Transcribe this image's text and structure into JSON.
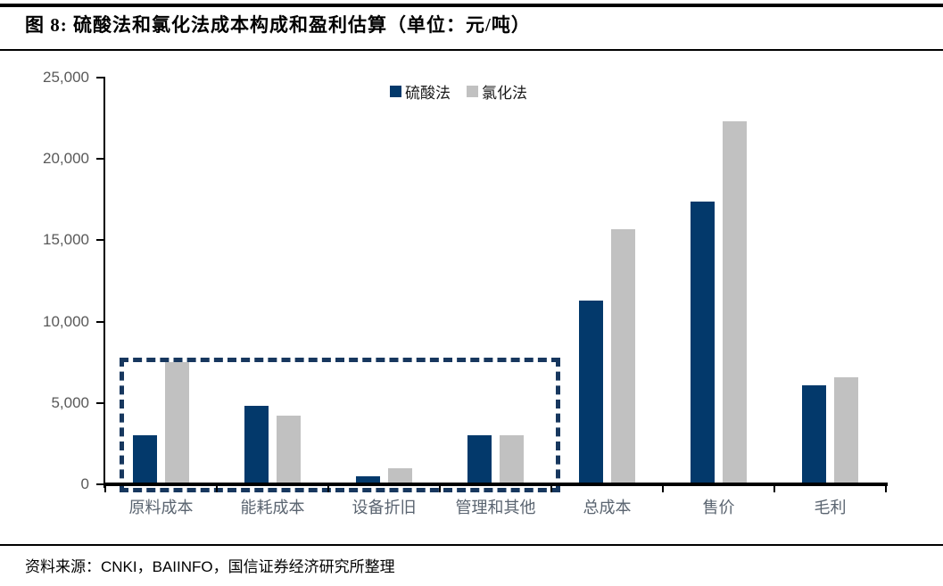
{
  "figure": {
    "title": "图 8:  硫酸法和氯化法成本构成和盈利估算（单位：元/吨）",
    "source": "资料来源：CNKI，BAIINFO，国信证券经济研究所整理"
  },
  "colors": {
    "sulfuric": "#03396B",
    "chloride": "#C1C1C1",
    "dashed_box": "#17375E",
    "axis": "#000000",
    "ytick_label": "#595959",
    "xtick_label": "#5A6470",
    "legend_text": "#1A1A1A"
  },
  "chart_data": {
    "type": "bar",
    "title": "硫酸法和氯化法成本构成和盈利估算",
    "unit": "元/吨",
    "categories": [
      "原料成本",
      "能耗成本",
      "设备折旧",
      "管理和其他",
      "总成本",
      "售价",
      "毛利"
    ],
    "series": [
      {
        "name": "硫酸法",
        "color": "#03396B",
        "values": [
          3000,
          4800,
          500,
          3000,
          11300,
          17400,
          6100
        ]
      },
      {
        "name": "氯化法",
        "color": "#C1C1C1",
        "values": [
          7500,
          4200,
          1000,
          3000,
          15700,
          22300,
          6600
        ]
      }
    ],
    "ylim": [
      0,
      25000
    ],
    "ytick_step": 5000,
    "ytick_labels": [
      "0",
      "5,000",
      "10,000",
      "15,000",
      "20,000",
      "25,000"
    ],
    "grid": false,
    "legend_position": "top-center",
    "annotation_box": {
      "style": "dashed",
      "covers_categories": [
        "原料成本",
        "能耗成本",
        "设备折旧",
        "管理和其他"
      ]
    }
  }
}
